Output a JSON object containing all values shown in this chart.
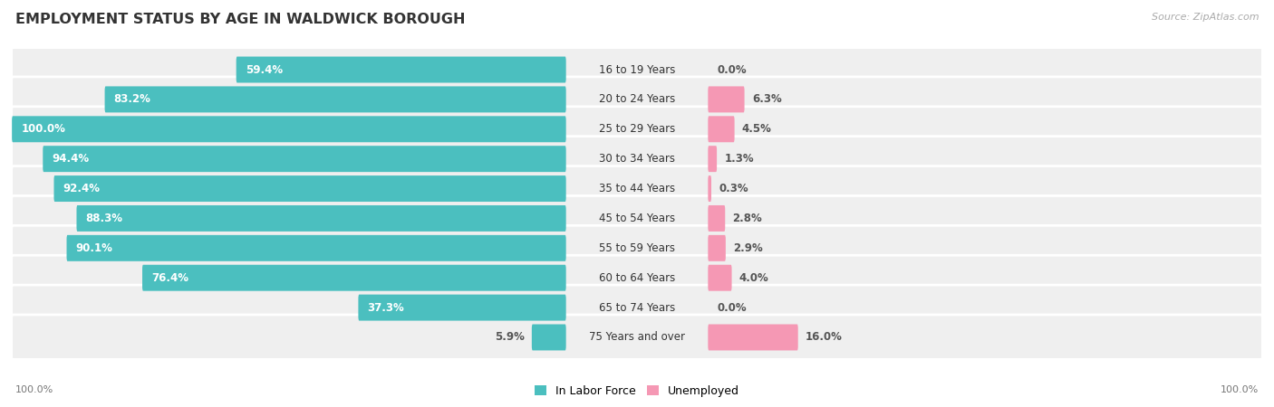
{
  "title": "EMPLOYMENT STATUS BY AGE IN WALDWICK BOROUGH",
  "source": "Source: ZipAtlas.com",
  "categories": [
    "16 to 19 Years",
    "20 to 24 Years",
    "25 to 29 Years",
    "30 to 34 Years",
    "35 to 44 Years",
    "45 to 54 Years",
    "55 to 59 Years",
    "60 to 64 Years",
    "65 to 74 Years",
    "75 Years and over"
  ],
  "in_labor_force": [
    59.4,
    83.2,
    100.0,
    94.4,
    92.4,
    88.3,
    90.1,
    76.4,
    37.3,
    5.9
  ],
  "unemployed": [
    0.0,
    6.3,
    4.5,
    1.3,
    0.3,
    2.8,
    2.9,
    4.0,
    0.0,
    16.0
  ],
  "labor_color": "#4bbfbf",
  "unemployed_color": "#f598b4",
  "row_bg_color": "#efefef",
  "row_sep_color": "#ffffff",
  "title_fontsize": 11.5,
  "label_fontsize": 8.5,
  "source_fontsize": 8,
  "legend_fontsize": 9,
  "axis_label_fontsize": 8
}
